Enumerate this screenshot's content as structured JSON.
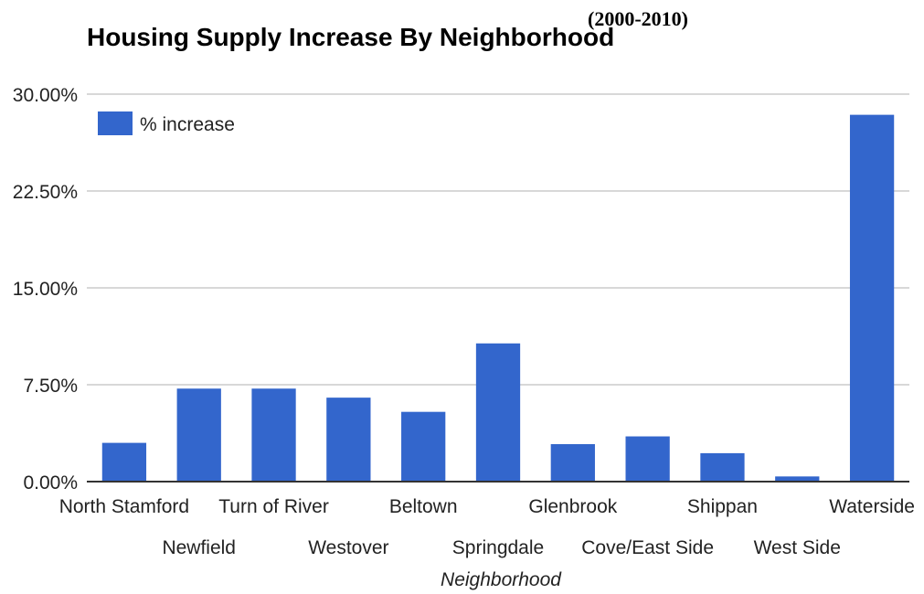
{
  "chart_data": {
    "type": "bar",
    "title": "Housing Supply Increase By Neighborhood",
    "subtitle": "(2000-2010)",
    "xlabel": "Neighborhood",
    "ylabel": "",
    "ylim": [
      0,
      30
    ],
    "y_ticks": [
      "0.00%",
      "7.50%",
      "15.00%",
      "22.50%",
      "30.00%"
    ],
    "y_tick_values": [
      0,
      7.5,
      15,
      22.5,
      30
    ],
    "grid": true,
    "legend_position": "top-left",
    "categories": [
      "North Stamford",
      "Newfield",
      "Turn of River",
      "Westover",
      "Beltown",
      "Springdale",
      "Glenbrook",
      "Cove/East Side",
      "Shippan",
      "West Side",
      "Waterside"
    ],
    "series": [
      {
        "name": "% increase",
        "color": "#3366cc",
        "values": [
          3.0,
          7.2,
          7.2,
          6.5,
          5.4,
          10.7,
          2.9,
          3.5,
          2.2,
          0.4,
          28.4
        ]
      }
    ]
  }
}
